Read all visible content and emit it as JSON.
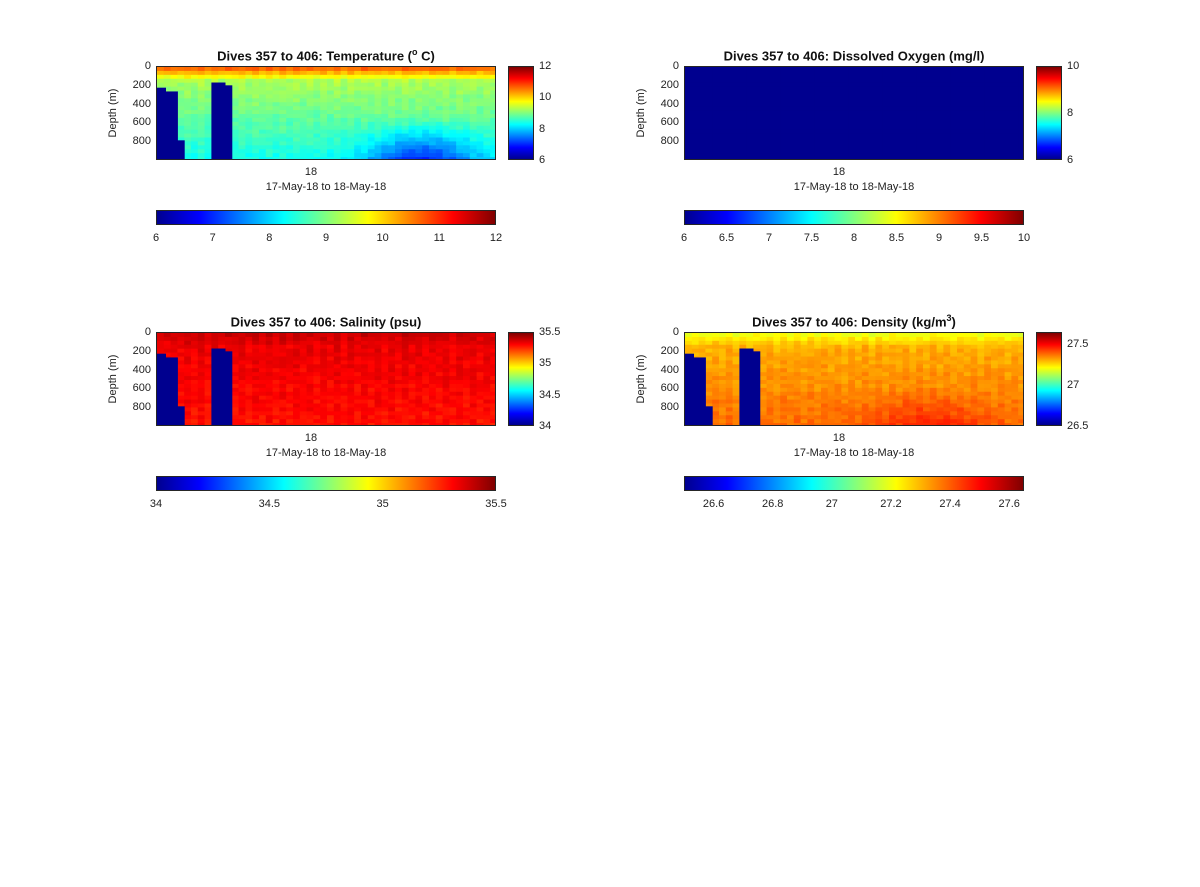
{
  "colormap": [
    "#00008f",
    "#0000ff",
    "#0080ff",
    "#00ffff",
    "#80ff80",
    "#ffff00",
    "#ff8000",
    "#ff0000",
    "#800000"
  ],
  "chart_data": [
    {
      "type": "heatmap",
      "title": "Dives 357 to 406: Temperature (",
      "title_sup": "o",
      "title_tail": " C)",
      "ylabel": "Depth (m)",
      "xlabel": "17-May-18 to 18-May-18",
      "x_ticks": [
        "18"
      ],
      "y_ticks": [
        "0",
        "200",
        "400",
        "600",
        "800"
      ],
      "y_tick_values": [
        0,
        200,
        400,
        600,
        800
      ],
      "ylim": [
        0,
        1000
      ],
      "y_reversed": true,
      "clim": [
        6,
        12
      ],
      "colorbar_ticks": [
        "6",
        "8",
        "10",
        "12"
      ],
      "colorbar_tick_values": [
        6,
        8,
        10,
        12
      ],
      "hcolorbar_ticks": [
        "6",
        "7",
        "8",
        "9",
        "10",
        "11",
        "12"
      ],
      "hcolorbar_tick_values": [
        6,
        7,
        8,
        9,
        10,
        11,
        12
      ],
      "profile": {
        "surface": 10.8,
        "mid": 9.2,
        "deep": 8.3,
        "deep_dip": 6.8,
        "dip_center": 0.78
      }
    },
    {
      "type": "heatmap",
      "title": "Dives 357 to 406: Dissolved Oxygen (mg/l)",
      "title_sup": "",
      "title_tail": "",
      "ylabel": "Depth (m)",
      "xlabel": "17-May-18 to 18-May-18",
      "x_ticks": [
        "18"
      ],
      "y_ticks": [
        "0",
        "200",
        "400",
        "600",
        "800"
      ],
      "y_tick_values": [
        0,
        200,
        400,
        600,
        800
      ],
      "ylim": [
        0,
        1000
      ],
      "y_reversed": true,
      "clim": [
        6,
        10
      ],
      "colorbar_ticks": [
        "6",
        "8",
        "10"
      ],
      "colorbar_tick_values": [
        6,
        8,
        10
      ],
      "hcolorbar_ticks": [
        "6",
        "6.5",
        "7",
        "7.5",
        "8",
        "8.5",
        "9",
        "9.5",
        "10"
      ],
      "hcolorbar_tick_values": [
        6,
        6.5,
        7,
        7.5,
        8,
        8.5,
        9,
        9.5,
        10
      ],
      "profile": {
        "uniform": 6.0
      }
    },
    {
      "type": "heatmap",
      "title": "Dives 357 to 406: Salinity (psu)",
      "title_sup": "",
      "title_tail": "",
      "ylabel": "Depth (m)",
      "xlabel": "17-May-18 to 18-May-18",
      "x_ticks": [
        "18"
      ],
      "y_ticks": [
        "0",
        "200",
        "400",
        "600",
        "800"
      ],
      "y_tick_values": [
        0,
        200,
        400,
        600,
        800
      ],
      "ylim": [
        0,
        1000
      ],
      "y_reversed": true,
      "clim": [
        34,
        35.5
      ],
      "colorbar_ticks": [
        "34",
        "34.5",
        "35",
        "35.5"
      ],
      "colorbar_tick_values": [
        34,
        34.5,
        35,
        35.5
      ],
      "hcolorbar_ticks": [
        "34",
        "34.5",
        "35",
        "35.5"
      ],
      "hcolorbar_tick_values": [
        34,
        34.5,
        35,
        35.5
      ],
      "profile": {
        "surface": 35.38,
        "mid": 35.33,
        "deep": 35.28
      }
    },
    {
      "type": "heatmap",
      "title": "Dives 357 to 406: Density (kg/m",
      "title_sup": "3",
      "title_tail": ")",
      "ylabel": "Depth (m)",
      "xlabel": "17-May-18 to 18-May-18",
      "x_ticks": [
        "18"
      ],
      "y_ticks": [
        "0",
        "200",
        "400",
        "600",
        "800"
      ],
      "y_tick_values": [
        0,
        200,
        400,
        600,
        800
      ],
      "ylim": [
        0,
        1000
      ],
      "y_reversed": true,
      "clim": [
        26.5,
        27.65
      ],
      "colorbar_ticks": [
        "26.5",
        "27",
        "27.5"
      ],
      "colorbar_tick_values": [
        26.5,
        27,
        27.5
      ],
      "hcolorbar_ticks": [
        "26.6",
        "26.8",
        "27",
        "27.2",
        "27.4",
        "27.6"
      ],
      "hcolorbar_tick_values": [
        26.6,
        26.8,
        27,
        27.2,
        27.4,
        27.6
      ],
      "profile": {
        "surface": 27.18,
        "mid": 27.3,
        "deep": 27.38,
        "deep_dip": 27.47,
        "dip_center": 0.72
      }
    }
  ]
}
